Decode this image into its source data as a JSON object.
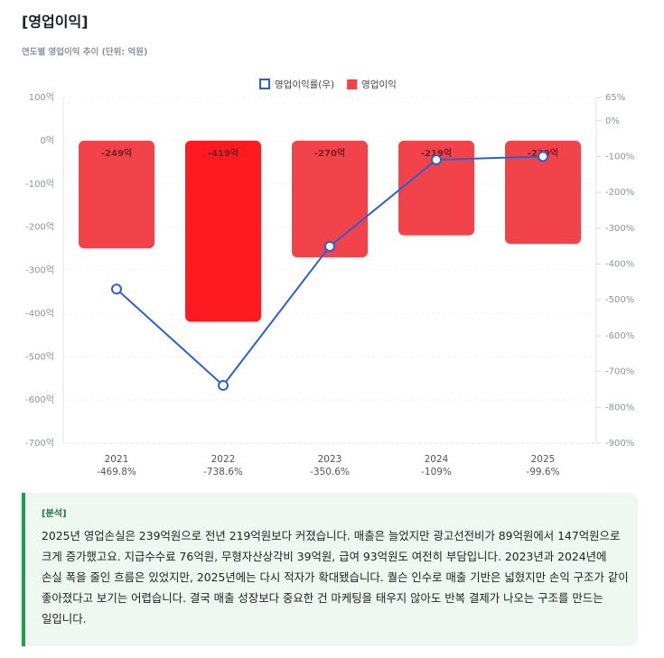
{
  "chart_data": {
    "type": "bar_line",
    "title": "[영업이익]",
    "subtitle": "연도별 영업이익 추이 (단위: 억원)",
    "categories": [
      "2021",
      "2022",
      "2023",
      "2024",
      "2025"
    ],
    "series": [
      {
        "name": "영업이익",
        "type": "bar",
        "color": "#f2434b",
        "colors": [
          "#f2434b",
          "#ff1a22",
          "#f2434b",
          "#f2434b",
          "#f2434b"
        ],
        "values": [
          -249,
          -419,
          -270,
          -219,
          -239
        ],
        "value_labels": [
          "-249억",
          "-419억",
          "-270억",
          "-219억",
          "-239억"
        ]
      },
      {
        "name": "영업이익률(우)",
        "type": "line",
        "axis": "y2",
        "color": "#2b5fd3",
        "values": [
          -469.8,
          -738.6,
          -350.6,
          -109,
          -99.6
        ],
        "value_labels": [
          "-469.8%",
          "-738.6%",
          "-350.6%",
          "-109%",
          "-99.6%"
        ]
      }
    ],
    "ylim": [
      -700,
      100
    ],
    "yticks": [
      {
        "value": -700,
        "label": "-700억"
      },
      {
        "value": -600,
        "label": "-600억"
      },
      {
        "value": -500,
        "label": "-500억"
      },
      {
        "value": -400,
        "label": "-400억"
      },
      {
        "value": -300,
        "label": "-300억"
      },
      {
        "value": -200,
        "label": "-200억"
      },
      {
        "value": -100,
        "label": "-100억"
      },
      {
        "value": 0,
        "label": "0억"
      },
      {
        "value": 100,
        "label": "100억"
      }
    ],
    "y2lim": [
      -900,
      65
    ],
    "y2ticks": [
      {
        "value": -900,
        "label": "-900%"
      },
      {
        "value": -800,
        "label": "-800%"
      },
      {
        "value": -700,
        "label": "-700%"
      },
      {
        "value": -600,
        "label": "-600%"
      },
      {
        "value": -500,
        "label": "-500%"
      },
      {
        "value": -400,
        "label": "-400%"
      },
      {
        "value": -300,
        "label": "-300%"
      },
      {
        "value": -200,
        "label": "-200%"
      },
      {
        "value": -100,
        "label": "-100%"
      },
      {
        "value": 0,
        "label": "0%"
      },
      {
        "value": 65,
        "label": "65%"
      }
    ],
    "grid": true,
    "legend": "top"
  },
  "analysis": {
    "label": "[분석]",
    "lines": [
      "2025년 영업손실은 239억원으로 전년 219억원보다 커졌습니다. 매출은 늘었지만 광고선전비가 89억원에서 147억원으로",
      "크게 증가했고요. 지급수수료 76억원, 무형자산상각비 39억원, 급여 93억원도 여전히 부담입니다. 2023년과 2024년에",
      "손실 폭을 줄인 흐름은 있었지만, 2025년에는 다시 적자가 확대됐습니다. 퀄슨 인수로 매출 기반은 넓혔지만 손익 구조가 같이",
      "좋아졌다고 보기는 어렵습니다. 결국 매출 성장보다 중요한 건 마케팅을 태우지 않아도 반복 결제가 나오는 구조를 만드는",
      "일입니다."
    ]
  }
}
